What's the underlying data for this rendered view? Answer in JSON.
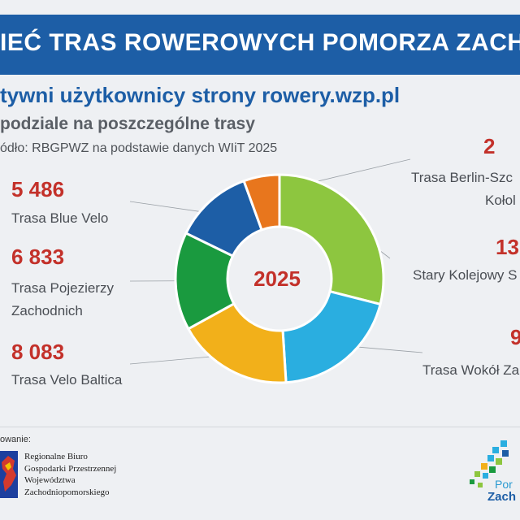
{
  "header": {
    "title": "IEĆ TRAS ROWEROWYCH POMORZA ZACHODNIEGO",
    "subtitle": "tywni użytkownicy strony rowery.wzp.pl",
    "subtitle2": "podziale na poszczególne trasy",
    "source": "ódło: RBGPWZ na podstawie danych WIiT 2025"
  },
  "colors": {
    "banner": "#1d5ea6",
    "value_red": "#c3312a"
  },
  "labels": {
    "blue_velo": {
      "value": "5 486",
      "name": "Trasa Blue Velo"
    },
    "pojezierzy": {
      "value": "6 833",
      "name_line1": "Trasa Pojezierzy",
      "name_line2": "Zachodnich"
    },
    "velo_baltica": {
      "value": "8 083",
      "name": "Trasa Velo Baltica"
    },
    "berlin": {
      "value": "2",
      "name_line1": "Trasa Berlin-Szc",
      "name_line2": "Kołol"
    },
    "kolejowy": {
      "value": "13",
      "name": "Stary Kolejowy S"
    },
    "wokol": {
      "value": "9",
      "name": "Trasa Wokół Za"
    }
  },
  "chart_data": {
    "type": "pie",
    "donut": true,
    "center_label": "2025",
    "start_angle_deg": 0,
    "direction": "clockwise",
    "slices": [
      {
        "label": "Stary Kolejowy S",
        "value": 13000,
        "color": "#8dc63f"
      },
      {
        "label": "Trasa Wokół Za",
        "value": 9000,
        "color": "#2aaee0"
      },
      {
        "label": "Trasa Velo Baltica",
        "value": 8083,
        "color": "#f2b01a"
      },
      {
        "label": "Trasa Pojezierzy Zachodnich",
        "value": 6833,
        "color": "#1a9a3f"
      },
      {
        "label": "Trasa Blue Velo",
        "value": 5486,
        "color": "#1d5ea6"
      },
      {
        "label": "Trasa Berlin-Szc Kołol",
        "value": 2500,
        "color": "#e8761d"
      }
    ]
  },
  "footer": {
    "label": "owanie:",
    "org_line1": "Regionalne Biuro",
    "org_line2": "Gospodarki Przestrzennej",
    "org_line3": "Województwa",
    "org_line4": "Zachodniopomorskiego",
    "logo_line1": "Por",
    "logo_line2": "Zach"
  }
}
